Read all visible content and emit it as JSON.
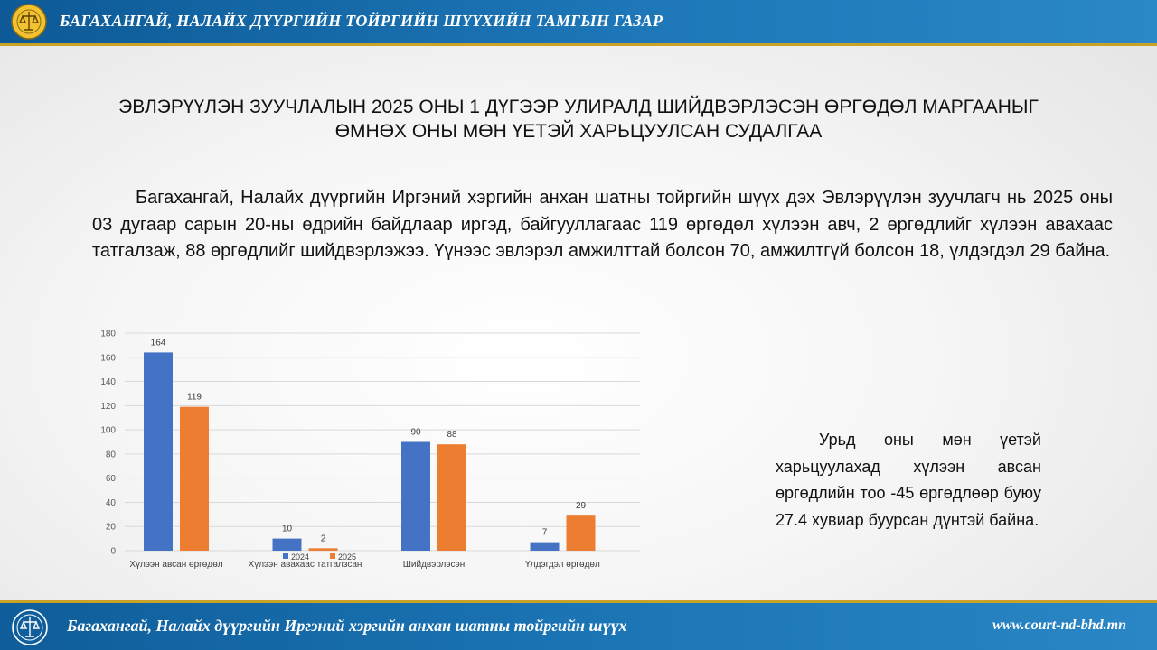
{
  "header": {
    "title": "БАГАХАНГАЙ, НАЛАЙХ ДҮҮРГИЙН ТОЙРГИЙН ШҮҮХИЙН ТАМГЫН ГАЗАР",
    "emblem_icon": "court-emblem-icon"
  },
  "main": {
    "title_line1": "ЭВЛЭРҮҮЛЭН ЗУУЧЛАЛЫН 2025 ОНЫ 1 ДҮГЭЭР УЛИРАЛД ШИЙДВЭРЛЭСЭН ӨРГӨДӨЛ МАРГААНЫГ",
    "title_line2": "ӨМНӨХ ОНЫ МӨН ҮЕТЭЙ ХАРЬЦУУЛСАН  СУДАЛГАА",
    "paragraph": "Багахангай, Налайх дүүргийн Иргэний хэргийн анхан шатны тойргийн шүүх дэх Эвлэрүүлэн зуучлагч нь 2025 оны 03 дугаар сарын 20-ны өдрийн байдлаар иргэд, байгууллагаас 119 өргөдөл хүлээн авч, 2 өргөдлийг хүлээн авахаас татгалзаж, 88 өргөдлийг шийдвэрлэжээ. Үүнээс эвлэрэл амжилттай болсон 70, амжилтгүй болсон 18, үлдэгдэл 29  байна.",
    "side_note": "Урьд оны мөн үетэй харьцуулахад хүлээн авсан өргөдлийн тоо -45 өргөдлөөр буюу 27.4 хувиар буурсан дүнтэй байна."
  },
  "chart_data": {
    "type": "bar",
    "categories": [
      "Хүлээн  авсан өргөдөл",
      "Хүлээн  авахаас татгалзсан",
      "Шийдвэрлэсэн",
      "Үлдэгдэл өргөдөл"
    ],
    "series": [
      {
        "name": "2024",
        "values": [
          164,
          10,
          90,
          7
        ],
        "color": "#4472c4"
      },
      {
        "name": "2025",
        "values": [
          119,
          2,
          88,
          29
        ],
        "color": "#ed7d31"
      }
    ],
    "y_ticks": [
      0,
      20,
      40,
      60,
      80,
      100,
      120,
      140,
      160,
      180
    ],
    "ylim": [
      0,
      180
    ],
    "grid": true,
    "legend": "bottom-center",
    "data_labels": true
  },
  "footer": {
    "court_name": "Багахангай, Налайх дүүргийн Иргэний хэргийн анхан шатны тойргийн шүүх",
    "website": "www.court-nd-bhd.mn",
    "emblem_icon": "court-emblem-icon"
  }
}
